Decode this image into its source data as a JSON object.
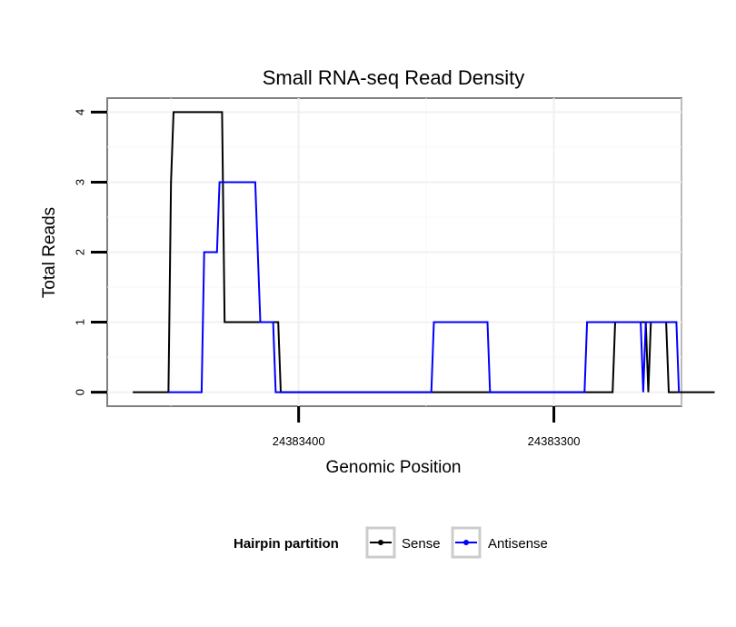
{
  "chart_data": {
    "type": "line",
    "title": "Small RNA-seq Read Density",
    "xlabel": "Genomic Position",
    "ylabel": "Total Reads",
    "x_reversed": true,
    "xlim": [
      24383250,
      24383475
    ],
    "ylim": [
      -0.2,
      4.2
    ],
    "xticks": [
      {
        "value": 24383400,
        "label": "24383400"
      },
      {
        "value": 24383300,
        "label": "24383300"
      }
    ],
    "yticks": [
      {
        "value": 0,
        "label": "0"
      },
      {
        "value": 1,
        "label": "1"
      },
      {
        "value": 2,
        "label": "2"
      },
      {
        "value": 3,
        "label": "3"
      },
      {
        "value": 4,
        "label": "4"
      }
    ],
    "grid": true,
    "legend": {
      "title": "Hairpin partition",
      "position": "bottom"
    },
    "series": [
      {
        "name": "Sense",
        "color": "#000000",
        "points": [
          [
            24383465,
            0
          ],
          [
            24383451,
            0
          ],
          [
            24383450,
            3
          ],
          [
            24383449,
            4
          ],
          [
            24383430,
            4
          ],
          [
            24383429,
            1
          ],
          [
            24383408,
            1
          ],
          [
            24383407,
            0
          ],
          [
            24383277,
            0
          ],
          [
            24383276,
            1
          ],
          [
            24383264,
            1
          ],
          [
            24383263,
            0
          ],
          [
            24383262,
            1
          ],
          [
            24383256,
            1
          ],
          [
            24383255,
            0
          ],
          [
            24383237,
            0
          ]
        ]
      },
      {
        "name": "Antisense",
        "color": "#0000ff",
        "points": [
          [
            24383451,
            0
          ],
          [
            24383438,
            0
          ],
          [
            24383437,
            2
          ],
          [
            24383432,
            2
          ],
          [
            24383431,
            3
          ],
          [
            24383417,
            3
          ],
          [
            24383415,
            1
          ],
          [
            24383410,
            1
          ],
          [
            24383409,
            0
          ],
          [
            24383348,
            0
          ],
          [
            24383347,
            1
          ],
          [
            24383326,
            1
          ],
          [
            24383325,
            0
          ],
          [
            24383288,
            0
          ],
          [
            24383287,
            1
          ],
          [
            24383266,
            1
          ],
          [
            24383265,
            0
          ],
          [
            24383264,
            1
          ],
          [
            24383252,
            1
          ],
          [
            24383251,
            0
          ]
        ]
      }
    ]
  }
}
